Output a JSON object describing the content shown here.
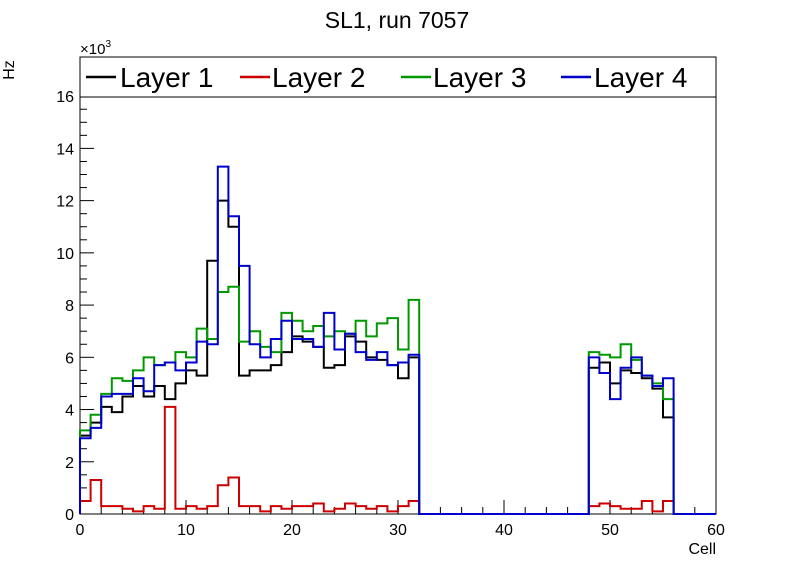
{
  "chart_data": {
    "type": "line",
    "style": "step-histogram",
    "title": "SL1, run 7057",
    "xlabel": "Cell",
    "ylabel": "Hz",
    "y_multiplier": "×10",
    "y_multiplier_exp": "3",
    "xlim": [
      0,
      60
    ],
    "ylim": [
      0,
      17.5
    ],
    "x_ticks": [
      0,
      10,
      20,
      30,
      40,
      50,
      60
    ],
    "y_ticks": [
      0,
      2,
      4,
      6,
      8,
      10,
      12,
      14,
      16
    ],
    "legend_position": "top",
    "bin_width": 1,
    "series": [
      {
        "name": "Layer 1",
        "color": "#000000",
        "values": [
          3.0,
          3.5,
          4.1,
          3.9,
          4.5,
          4.9,
          4.5,
          4.9,
          4.4,
          5.0,
          5.5,
          5.3,
          9.7,
          12.0,
          11.0,
          5.3,
          5.5,
          5.5,
          5.7,
          6.2,
          6.8,
          6.6,
          6.4,
          5.6,
          5.7,
          6.8,
          6.6,
          6.0,
          5.9,
          5.7,
          5.2,
          6.0,
          0,
          0,
          0,
          0,
          0,
          0,
          0,
          0,
          0,
          0,
          0,
          0,
          0,
          0,
          0,
          0,
          5.6,
          5.8,
          5.0,
          5.5,
          5.4,
          5.2,
          4.8,
          3.7,
          0,
          0,
          0,
          0
        ]
      },
      {
        "name": "Layer 2",
        "color": "#cc0000",
        "values": [
          0.5,
          1.3,
          0.3,
          0.3,
          0.2,
          0.1,
          0.3,
          0.2,
          4.1,
          0.2,
          0.3,
          0.2,
          0.3,
          1.1,
          1.4,
          0.3,
          0.3,
          0.1,
          0.3,
          0.2,
          0.3,
          0.3,
          0.4,
          0.1,
          0.2,
          0.4,
          0.3,
          0.2,
          0.3,
          0.1,
          0.3,
          0.5,
          0,
          0,
          0,
          0,
          0,
          0,
          0,
          0,
          0,
          0,
          0,
          0,
          0,
          0,
          0,
          0,
          0.3,
          0.4,
          0.3,
          0.2,
          0.2,
          0.5,
          0.1,
          0.5,
          0,
          0,
          0,
          0
        ]
      },
      {
        "name": "Layer 3",
        "color": "#009900",
        "values": [
          3.2,
          3.8,
          4.6,
          5.2,
          5.1,
          5.5,
          6.0,
          5.7,
          5.8,
          6.2,
          6.0,
          7.1,
          6.7,
          8.5,
          8.7,
          6.6,
          7.0,
          6.4,
          6.2,
          7.7,
          7.4,
          7.0,
          7.2,
          6.8,
          7.0,
          6.9,
          7.4,
          6.8,
          7.3,
          7.5,
          6.3,
          8.2,
          0,
          0,
          0,
          0,
          0,
          0,
          0,
          0,
          0,
          0,
          0,
          0,
          0,
          0,
          0,
          0,
          6.2,
          6.1,
          6.0,
          6.5,
          5.9,
          5.3,
          5.0,
          4.4,
          0,
          0,
          0,
          0
        ]
      },
      {
        "name": "Layer 4",
        "color": "#0000cc",
        "values": [
          2.9,
          3.3,
          4.5,
          4.6,
          4.6,
          5.2,
          4.7,
          5.7,
          5.8,
          5.5,
          5.8,
          6.6,
          6.5,
          13.3,
          11.4,
          9.5,
          6.5,
          6.0,
          6.7,
          7.4,
          6.7,
          6.7,
          6.4,
          7.7,
          6.3,
          6.9,
          6.2,
          5.9,
          6.2,
          5.7,
          5.8,
          6.1,
          0,
          0,
          0,
          0,
          0,
          0,
          0,
          0,
          0,
          0,
          0,
          0,
          0,
          0,
          0,
          0,
          6.0,
          5.4,
          4.4,
          5.6,
          6.0,
          5.3,
          4.9,
          5.2,
          0,
          0,
          0,
          0
        ]
      }
    ]
  }
}
